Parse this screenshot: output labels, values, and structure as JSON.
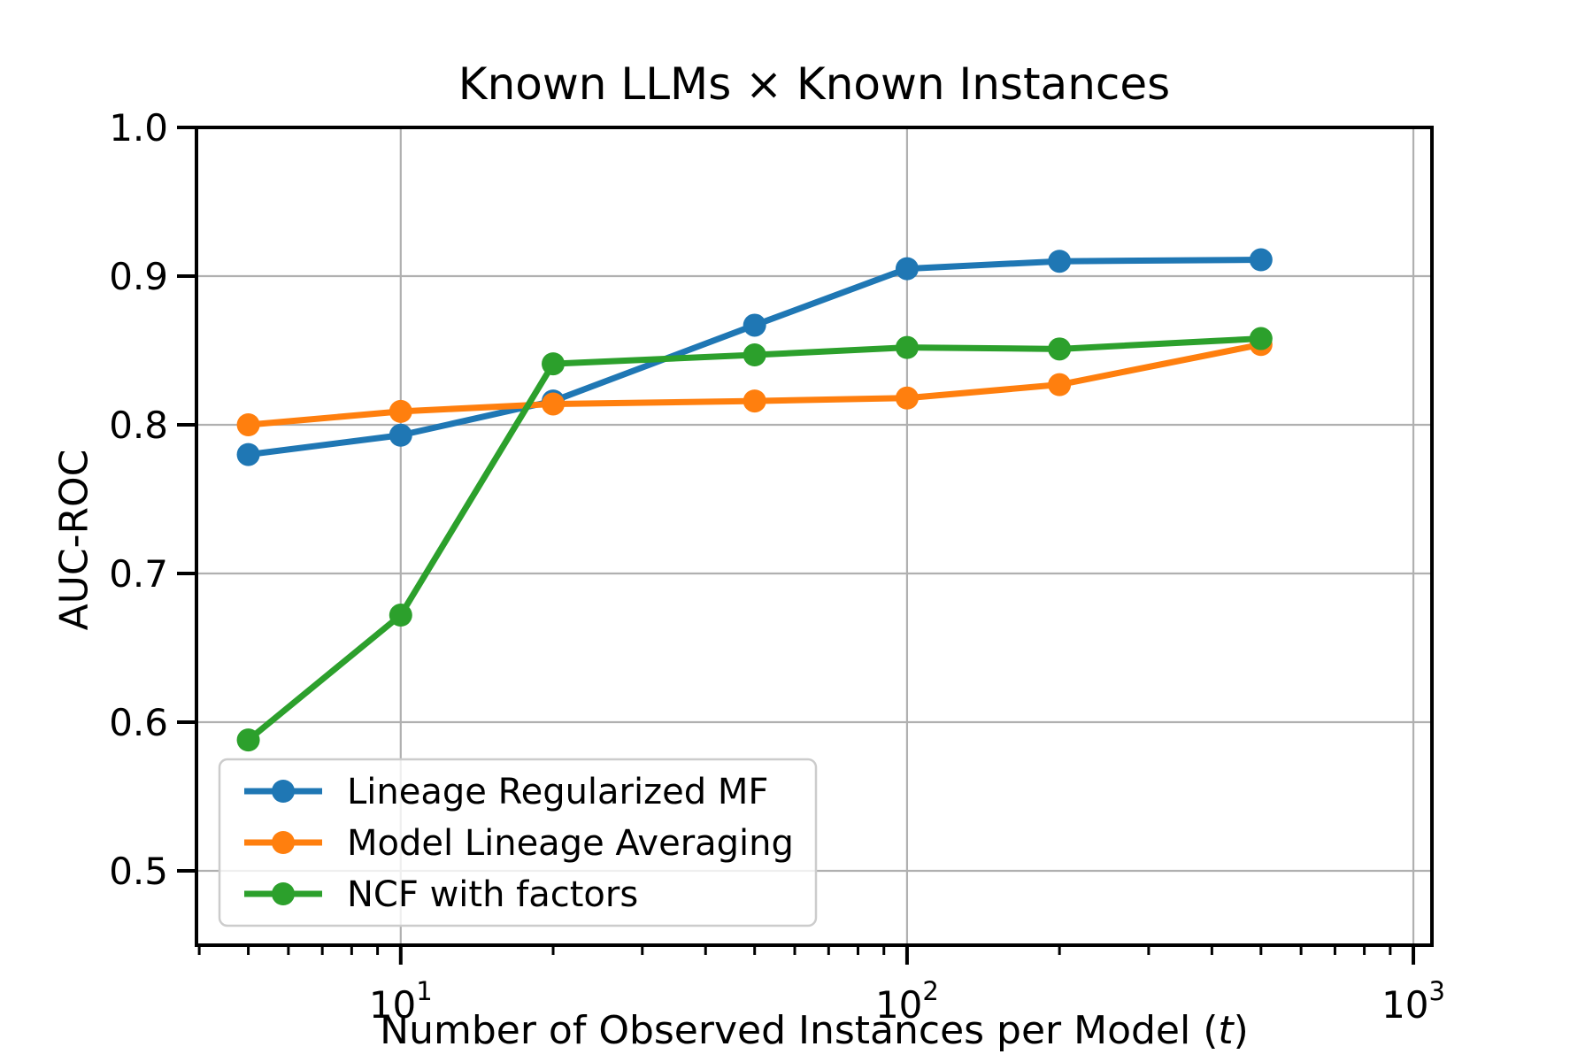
{
  "figure": {
    "title": "Known LLMs × Known Instances",
    "ylabel": "AUC-ROC",
    "xlabel_prefix": "Number of Observed Instances per Model (",
    "xlabel_var": "t",
    "xlabel_suffix": ")"
  },
  "chart_data": {
    "type": "line",
    "title": "Known LLMs × Known Instances",
    "xlabel": "Number of Observed Instances per Model (t)",
    "ylabel": "AUC-ROC",
    "x_scale": "log",
    "x": [
      5,
      10,
      20,
      50,
      100,
      200,
      500
    ],
    "series": [
      {
        "name": "Lineage Regularized MF",
        "color": "#1f77b4",
        "values": [
          0.78,
          0.793,
          0.816,
          0.867,
          0.905,
          0.91,
          0.911
        ]
      },
      {
        "name": "Model Lineage Averaging",
        "color": "#ff7f0e",
        "values": [
          0.8,
          0.809,
          0.814,
          0.816,
          0.818,
          0.827,
          0.854
        ]
      },
      {
        "name": "NCF with factors",
        "color": "#2ca02c",
        "values": [
          0.588,
          0.672,
          0.841,
          0.847,
          0.852,
          0.851,
          0.858
        ]
      }
    ],
    "xlim": [
      3.95,
      1088
    ],
    "ylim": [
      0.45,
      1.0
    ],
    "y_ticks": [
      0.5,
      0.6,
      0.7,
      0.8,
      0.9,
      1.0
    ],
    "y_tick_labels": [
      "0.5",
      "0.6",
      "0.7",
      "0.8",
      "0.9",
      "1.0"
    ],
    "x_major_ticks": [
      {
        "value": 10,
        "base": "10",
        "exp": "1"
      },
      {
        "value": 100,
        "base": "10",
        "exp": "2"
      },
      {
        "value": 1000,
        "base": "10",
        "exp": "3"
      }
    ],
    "x_minor_ticks": [
      4,
      5,
      6,
      7,
      8,
      9,
      20,
      30,
      40,
      50,
      60,
      70,
      80,
      90,
      200,
      300,
      400,
      500,
      600,
      700,
      800,
      900
    ],
    "grid": true,
    "grid_color": "#b0b0b0",
    "spine_color": "#000000",
    "legend_position": "lower left",
    "legend_border_color": "#cccccc",
    "text_color": "#000000"
  }
}
